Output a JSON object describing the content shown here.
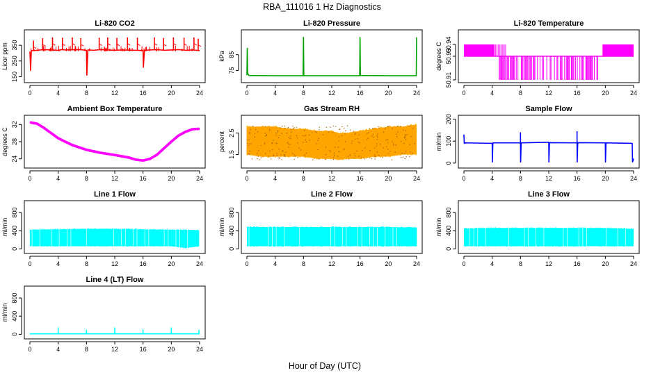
{
  "figure": {
    "title": "RBA_111016  1 Hz Diagnostics",
    "xlabel": "Hour of Day (UTC)"
  },
  "chart_data": [
    {
      "id": "p1",
      "type": "line",
      "title": "Li-820 CO2",
      "ylabel": "Licor ppm",
      "color": "#ff0000",
      "xlim": [
        0,
        24
      ],
      "ylim": [
        130,
        430
      ],
      "xticks": [
        0,
        4,
        8,
        12,
        16,
        20,
        24
      ],
      "yticks": [
        150,
        250,
        350
      ],
      "x": [
        0,
        0.1,
        0.2,
        1,
        2,
        3,
        4,
        4.5,
        5,
        6,
        7,
        8,
        8.05,
        8.2,
        9,
        10,
        11,
        12,
        13,
        14,
        15,
        16,
        16.05,
        16.2,
        17,
        18,
        19,
        20,
        21,
        22,
        23,
        24
      ],
      "y": [
        310,
        190,
        315,
        318,
        322,
        320,
        318,
        322,
        320,
        321,
        322,
        318,
        160,
        320,
        318,
        322,
        320,
        318,
        320,
        319,
        318,
        316,
        210,
        318,
        320,
        322,
        318,
        320,
        322,
        318,
        320,
        316
      ],
      "spikes_x": [
        0.5,
        1.8,
        3.2,
        4.6,
        6.0,
        7.2,
        9.8,
        11.0,
        12.3,
        13.8,
        15.2,
        17.6,
        18.9,
        20.3,
        21.8,
        23.2,
        23.8
      ],
      "spikes_y": [
        380,
        395,
        400,
        398,
        400,
        395,
        398,
        400,
        397,
        400,
        398,
        400,
        396,
        400,
        398,
        400,
        392
      ]
    },
    {
      "id": "p2",
      "type": "line",
      "title": "Li-820 Pressure",
      "ylabel": "kPa",
      "color": "#00a000",
      "xlim": [
        0,
        24
      ],
      "ylim": [
        69,
        99
      ],
      "xticks": [
        0,
        4,
        8,
        12,
        16,
        20,
        24
      ],
      "yticks": [
        75,
        85
      ],
      "x": [
        0,
        0.05,
        0.1,
        0.3,
        4,
        7.95,
        8,
        8.05,
        12,
        15.95,
        16,
        16.05,
        20,
        23.95,
        24
      ],
      "y": [
        72,
        89,
        73,
        71.8,
        71.6,
        71.6,
        96,
        71.6,
        71.6,
        71.6,
        96,
        71.8,
        71.6,
        71.6,
        96
      ]
    },
    {
      "id": "p3",
      "type": "step",
      "title": "Li-820 Temperature",
      "ylabel": "degrees C",
      "color": "#ff00ff",
      "xlim": [
        0,
        24
      ],
      "ylim": [
        50.91,
        50.95
      ],
      "xticks": [
        0,
        4,
        8,
        12,
        16,
        20,
        24
      ],
      "yticks": [
        50.91,
        50.93,
        50.94
      ],
      "x": [
        0,
        4.2,
        4.3,
        5.2,
        5.3,
        6,
        19.5,
        19.8,
        24
      ],
      "y": [
        50.94,
        50.94,
        50.93,
        50.93,
        50.92,
        50.92,
        50.93,
        50.94,
        50.94
      ],
      "band_ranges": [
        [
          0,
          4.3,
          50.93,
          50.94
        ],
        [
          19.6,
          24,
          50.93,
          50.94
        ],
        [
          5.5,
          18.8,
          50.91,
          50.93
        ]
      ]
    },
    {
      "id": "p4",
      "type": "line",
      "title": "Ambient Box Temperature",
      "ylabel": "degrees C",
      "color": "#ff00ff",
      "xlim": [
        0,
        24
      ],
      "ylim": [
        22.5,
        33.5
      ],
      "xticks": [
        0,
        4,
        8,
        12,
        16,
        20,
        24
      ],
      "yticks": [
        24,
        28,
        32
      ],
      "x": [
        0,
        1,
        2,
        3,
        4,
        6,
        8,
        10,
        12,
        14,
        15,
        16,
        17,
        18,
        19,
        20,
        21,
        22,
        23,
        24
      ],
      "y": [
        32.5,
        32.2,
        31.2,
        30.0,
        28.8,
        27.2,
        26.1,
        25.4,
        24.9,
        24.3,
        23.8,
        23.6,
        24.0,
        25.0,
        26.5,
        28.0,
        29.4,
        30.3,
        30.9,
        31.0
      ],
      "band": 0.6
    },
    {
      "id": "p5",
      "type": "area",
      "title": "Gas Stream RH",
      "ylabel": "percent",
      "color": "#ffa500",
      "xlim": [
        0,
        24
      ],
      "ylim": [
        1.0,
        3.2
      ],
      "xticks": [
        0,
        4,
        8,
        12,
        16,
        20,
        24
      ],
      "yticks": [
        1.5,
        2.5
      ],
      "x": [
        0,
        2,
        4,
        6,
        8,
        10,
        12,
        13,
        14,
        16,
        18,
        20,
        22,
        24
      ],
      "upper": [
        2.8,
        2.8,
        2.8,
        2.7,
        2.7,
        2.6,
        2.6,
        2.5,
        2.5,
        2.6,
        2.7,
        2.8,
        2.8,
        2.9
      ],
      "lower": [
        1.5,
        1.4,
        1.4,
        1.4,
        1.4,
        1.3,
        1.3,
        1.25,
        1.3,
        1.3,
        1.4,
        1.4,
        1.5,
        1.5
      ]
    },
    {
      "id": "p6",
      "type": "line",
      "title": "Sample Flow",
      "ylabel": "ml/min",
      "color": "#0000ff",
      "xlim": [
        0,
        24
      ],
      "ylim": [
        -10,
        205
      ],
      "xticks": [
        0,
        4,
        8,
        12,
        16,
        20,
        24
      ],
      "yticks": [
        0,
        100,
        200
      ],
      "x": [
        0,
        0.05,
        0.2,
        4,
        4.02,
        4.1,
        8,
        8.02,
        8.1,
        12,
        12.02,
        12.1,
        16,
        16.02,
        16.1,
        20,
        20.02,
        20.1,
        23.8,
        23.85,
        24
      ],
      "y": [
        130,
        90,
        92,
        90,
        5,
        92,
        92,
        5,
        92,
        95,
        5,
        93,
        92,
        5,
        93,
        92,
        5,
        92,
        90,
        5,
        20
      ],
      "spikes_x": [
        8.0,
        16.0
      ],
      "spikes_y": [
        140,
        145
      ]
    },
    {
      "id": "p7",
      "type": "area",
      "title": "Line 1 Flow",
      "ylabel": "ml/min",
      "color": "#00ffff",
      "xlim": [
        0,
        24
      ],
      "ylim": [
        -40,
        1000
      ],
      "xticks": [
        0,
        4,
        8,
        12,
        16,
        20,
        24
      ],
      "yticks": [
        0,
        400,
        800
      ],
      "x": [
        0,
        4,
        8,
        12,
        16,
        20,
        22,
        24
      ],
      "upper": [
        420,
        430,
        440,
        440,
        430,
        420,
        420,
        410
      ],
      "lower": [
        60,
        60,
        60,
        60,
        60,
        60,
        20,
        60
      ]
    },
    {
      "id": "p8",
      "type": "area",
      "title": "Line 2 Flow",
      "ylabel": "ml/min",
      "color": "#00ffff",
      "xlim": [
        0,
        24
      ],
      "ylim": [
        -40,
        1000
      ],
      "xticks": [
        0,
        4,
        8,
        12,
        16,
        20,
        24
      ],
      "yticks": [
        0,
        400,
        800
      ],
      "x": [
        0,
        4,
        8,
        12,
        16,
        20,
        24
      ],
      "upper": [
        480,
        480,
        480,
        480,
        480,
        480,
        470
      ],
      "lower": [
        60,
        60,
        60,
        60,
        60,
        60,
        60
      ]
    },
    {
      "id": "p9",
      "type": "area",
      "title": "Line 3 Flow",
      "ylabel": "ml/min",
      "color": "#00ffff",
      "xlim": [
        0,
        24
      ],
      "ylim": [
        -40,
        1000
      ],
      "xticks": [
        0,
        4,
        8,
        12,
        16,
        20,
        24
      ],
      "yticks": [
        0,
        400,
        800
      ],
      "x": [
        0,
        4,
        8,
        12,
        16,
        20,
        24
      ],
      "upper": [
        450,
        460,
        460,
        460,
        460,
        460,
        440
      ],
      "lower": [
        60,
        60,
        60,
        60,
        60,
        60,
        60
      ]
    },
    {
      "id": "p10",
      "type": "line",
      "title": "Line 4 (LT) Flow",
      "ylabel": "ml/min",
      "color": "#00ffff",
      "xlim": [
        0,
        24
      ],
      "ylim": [
        -40,
        1000
      ],
      "xticks": [
        0,
        4,
        8,
        12,
        16,
        20,
        24
      ],
      "yticks": [
        0,
        400,
        800
      ],
      "x": [
        0,
        4,
        8,
        12,
        16,
        20,
        24
      ],
      "y": [
        10,
        10,
        10,
        10,
        10,
        10,
        10
      ],
      "spikes_x": [
        4.0,
        8.0,
        12.0,
        16.0,
        20.0,
        23.9
      ],
      "spikes_y": [
        150,
        100,
        150,
        110,
        150,
        100
      ]
    }
  ]
}
